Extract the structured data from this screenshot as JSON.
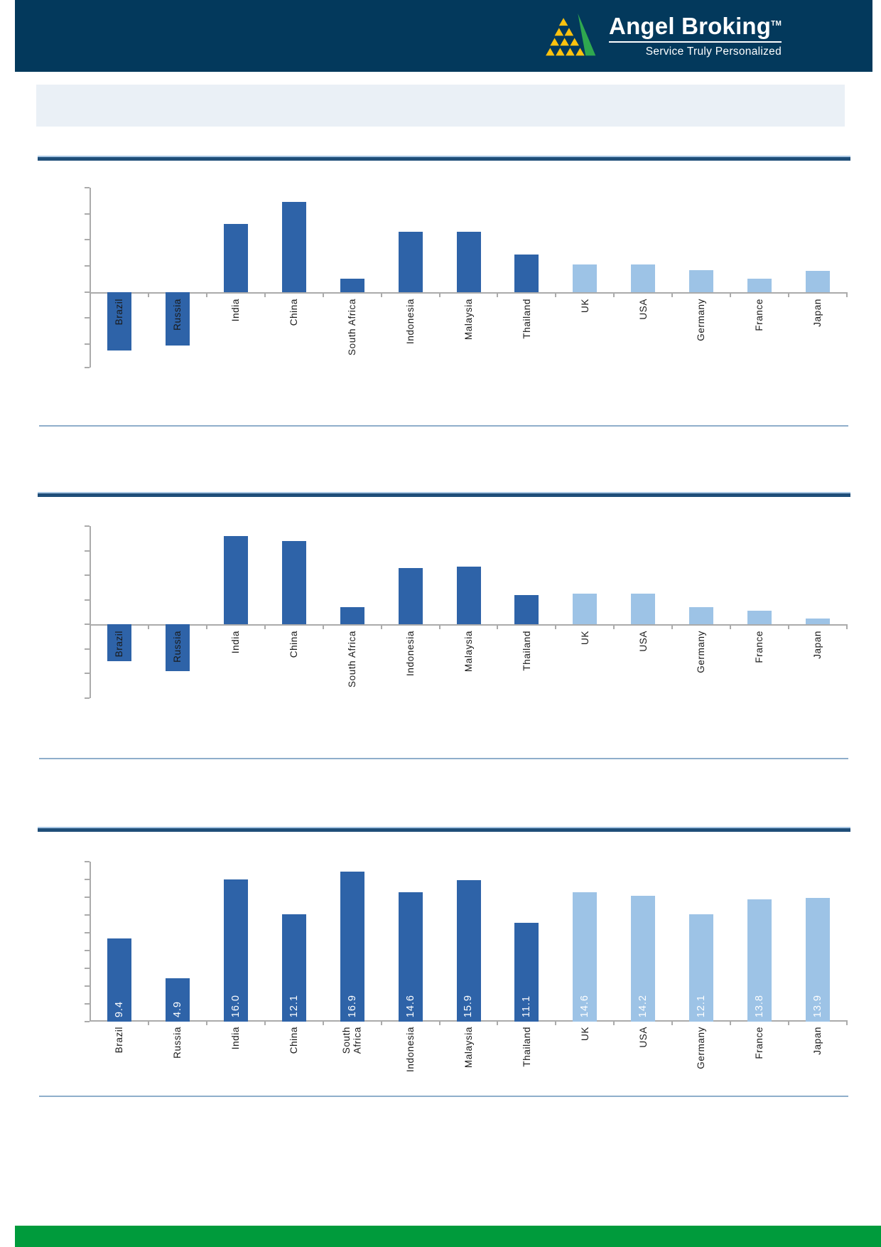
{
  "header": {
    "brand": "Angel Broking",
    "trademark": "TM",
    "tagline": "Service Truly Personalized"
  },
  "banner": {
    "title": ""
  },
  "colors": {
    "header_navy": "#03395C",
    "bar_dark": "#2E63A8",
    "bar_light": "#9DC3E6",
    "rule_dark": "#1F4E79",
    "rule_light": "#A9C7E4",
    "thin_rule": "#8FAECB",
    "axis_gray": "#ABABAB",
    "banner_bg": "#EAF0F6",
    "footer_green": "#009B3C",
    "logo_green": "#2FA84F",
    "logo_yellow": "#FFC20E"
  },
  "chart_data": [
    {
      "id": "chart1",
      "type": "bar",
      "title": "",
      "categories": [
        "Brazil",
        "Russia",
        "India",
        "China",
        "South Africa",
        "Indonesia",
        "Malaysia",
        "Thailand",
        "UK",
        "USA",
        "Germany",
        "France",
        "Japan"
      ],
      "values": [
        -2.25,
        -2.05,
        2.6,
        3.45,
        0.5,
        2.3,
        2.3,
        1.45,
        1.05,
        1.05,
        0.85,
        0.5,
        0.8
      ],
      "value_labels": [],
      "show_values": false,
      "split_index": 8,
      "xlabel": "",
      "ylabel": "",
      "ylim": [
        -2.9,
        4
      ],
      "tick_step": 1,
      "axis_tick_labels_visible": false,
      "grid": false,
      "legend": "none",
      "note": "y-axis has tick marks but no visible numeric labels; values are relative units read from ticks"
    },
    {
      "id": "chart2",
      "type": "bar",
      "title": "",
      "categories": [
        "Brazil",
        "Russia",
        "India",
        "China",
        "South Africa",
        "Indonesia",
        "Malaysia",
        "Thailand",
        "UK",
        "USA",
        "Germany",
        "France",
        "Japan"
      ],
      "values": [
        -1.5,
        -1.9,
        3.6,
        3.4,
        0.7,
        2.3,
        2.35,
        1.2,
        1.25,
        1.25,
        0.7,
        0.55,
        0.25
      ],
      "value_labels": [],
      "show_values": false,
      "split_index": 8,
      "xlabel": "",
      "ylabel": "",
      "ylim": [
        -3,
        4
      ],
      "tick_step": 1,
      "axis_tick_labels_visible": false,
      "grid": false,
      "legend": "none",
      "note": "y-axis has tick marks but no visible numeric labels; values are relative units read from ticks"
    },
    {
      "id": "chart3",
      "type": "bar",
      "title": "",
      "categories": [
        "Brazil",
        "Russia",
        "India",
        "China",
        "South\nAfrica",
        "Indonesia",
        "Malaysia",
        "Thailand",
        "UK",
        "USA",
        "Germany",
        "France",
        "Japan"
      ],
      "values": [
        9.4,
        4.9,
        16.0,
        12.1,
        16.9,
        14.6,
        15.9,
        11.1,
        14.6,
        14.2,
        12.1,
        13.8,
        13.9
      ],
      "value_labels": [
        "9.4",
        "4.9",
        "16.0",
        "12.1",
        "16.9",
        "14.6",
        "15.9",
        "11.1",
        "14.6",
        "14.2",
        "12.1",
        "13.8",
        "13.9"
      ],
      "show_values": true,
      "split_index": 8,
      "xlabel": "",
      "ylabel": "",
      "ylim": [
        0,
        18
      ],
      "tick_step": 2,
      "axis_tick_labels_visible": false,
      "grid": false,
      "legend": "none",
      "note": "white data labels printed vertically inside the bottom of each bar"
    }
  ]
}
